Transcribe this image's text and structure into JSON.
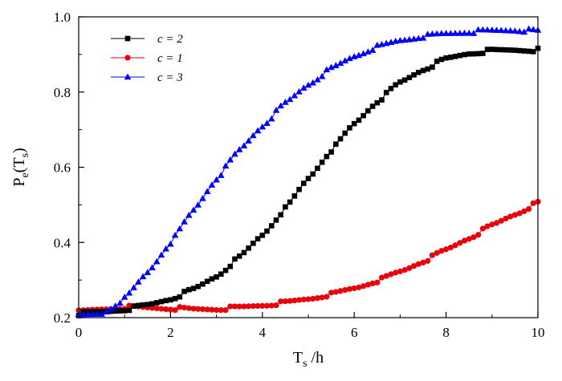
{
  "chart_data": {
    "type": "line",
    "xlabel": "T",
    "xlabel_sub": "s",
    "xlabel_unit": " /h",
    "ylabel": "P",
    "ylabel_sub_e": "e",
    "ylabel_open": "(T",
    "ylabel_sub_s": "s",
    "ylabel_close": ")",
    "xlim": [
      0,
      10
    ],
    "ylim": [
      0.2,
      1.0
    ],
    "xticks": [
      0,
      2,
      4,
      6,
      8,
      10
    ],
    "yticks": [
      0.2,
      0.4,
      0.6,
      0.8,
      1.0
    ],
    "xtick_labels": [
      "0",
      "2",
      "4",
      "6",
      "8",
      "10"
    ],
    "ytick_labels": [
      "0.2",
      "0.4",
      "0.6",
      "0.8",
      "1.0"
    ],
    "grid": false,
    "legend_position": "top-left",
    "series": [
      {
        "name": "c = 2",
        "color": "#000000",
        "marker": "square",
        "x": [
          0,
          0.5,
          1,
          1.5,
          2,
          2.5,
          3,
          3.5,
          4,
          4.5,
          5,
          5.5,
          6,
          6.5,
          7,
          7.5,
          8,
          8.5,
          9,
          9.5,
          10
        ],
        "y": [
          0.21,
          0.215,
          0.222,
          0.233,
          0.25,
          0.275,
          0.31,
          0.36,
          0.42,
          0.49,
          0.57,
          0.645,
          0.715,
          0.775,
          0.825,
          0.86,
          0.888,
          0.903,
          0.91,
          0.912,
          0.912
        ]
      },
      {
        "name": "c = 1",
        "color": "#e8000b",
        "marker": "circle",
        "x": [
          0,
          0.5,
          1,
          1.5,
          2,
          2.5,
          3,
          3.5,
          4,
          4.5,
          5,
          5.5,
          6,
          6.5,
          7,
          7.5,
          8,
          8.5,
          9,
          9.5,
          10
        ],
        "y": [
          0.215,
          0.222,
          0.228,
          0.226,
          0.225,
          0.222,
          0.223,
          0.227,
          0.233,
          0.24,
          0.25,
          0.262,
          0.278,
          0.298,
          0.322,
          0.35,
          0.38,
          0.412,
          0.445,
          0.475,
          0.505
        ]
      },
      {
        "name": "c = 3",
        "color": "#0000ff",
        "marker": "triangle",
        "x": [
          0,
          0.5,
          1,
          1.5,
          2,
          2.5,
          3,
          3.5,
          4,
          4.5,
          5,
          5.5,
          6,
          6.5,
          7,
          7.5,
          8,
          8.5,
          9,
          9.5,
          10
        ],
        "y": [
          0.205,
          0.21,
          0.25,
          0.32,
          0.4,
          0.485,
          0.57,
          0.645,
          0.71,
          0.77,
          0.82,
          0.862,
          0.895,
          0.92,
          0.937,
          0.948,
          0.955,
          0.96,
          0.963,
          0.965,
          0.962
        ]
      }
    ]
  }
}
